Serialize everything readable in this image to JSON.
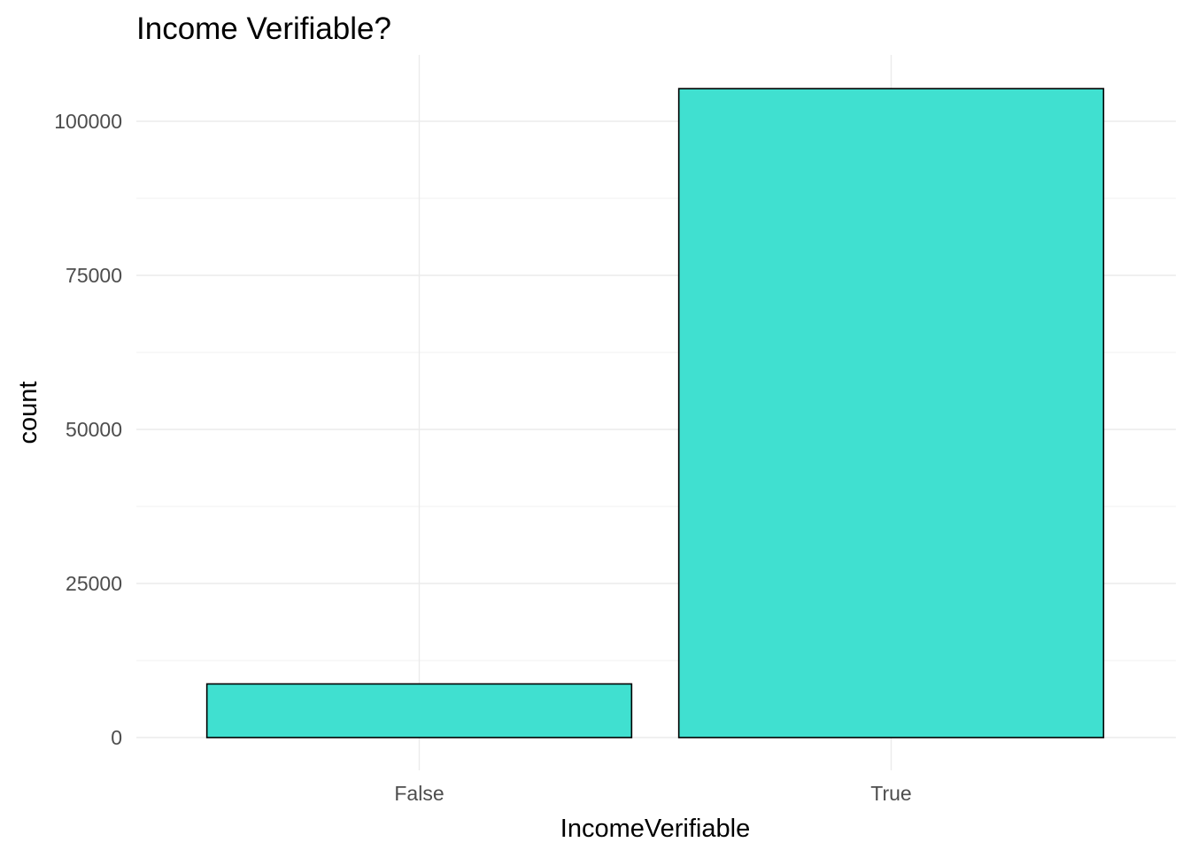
{
  "chart_data": {
    "type": "bar",
    "title": "Income Verifiable?",
    "xlabel": "IncomeVerifiable",
    "ylabel": "count",
    "categories": [
      "False",
      "True"
    ],
    "values": [
      8700,
      105300
    ],
    "ylim": [
      0,
      110000
    ],
    "yticks": [
      0,
      25000,
      50000,
      75000,
      100000
    ],
    "ytick_labels": [
      "0",
      "25000",
      "50000",
      "75000",
      "100000"
    ],
    "bar_fill": "#40E0D0",
    "bar_outline": "#000000",
    "grid": true,
    "legend": "none"
  }
}
